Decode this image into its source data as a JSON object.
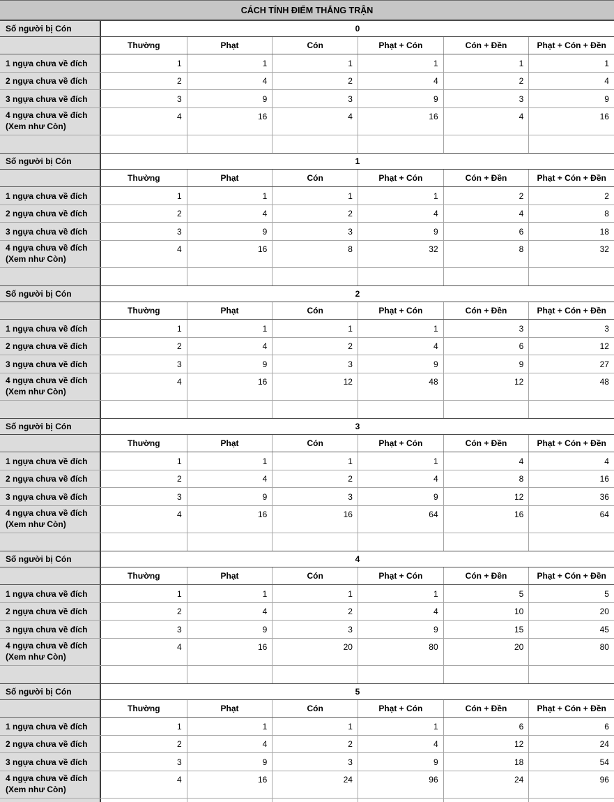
{
  "title": "CÁCH TÍNH ĐIỂM THẮNG TRẬN",
  "labels": {
    "group": "Số người bị Cón"
  },
  "columns": [
    "Thường",
    "Phạt",
    "Cón",
    "Phạt + Cón",
    "Cón + Đền",
    "Phạt + Cón + Đền"
  ],
  "row_labels": [
    "1 ngựa chưa về đích",
    "2 ngựa chưa về đích",
    "3 ngựa chưa về đích",
    "4 ngựa chưa về đích\n(Xem như Còn)"
  ],
  "sections": [
    {
      "count": "0",
      "rows": [
        [
          1,
          1,
          1,
          1,
          1,
          1
        ],
        [
          2,
          4,
          2,
          4,
          2,
          4
        ],
        [
          3,
          9,
          3,
          9,
          3,
          9
        ],
        [
          4,
          16,
          4,
          16,
          4,
          16
        ]
      ]
    },
    {
      "count": "1",
      "rows": [
        [
          1,
          1,
          1,
          1,
          2,
          2
        ],
        [
          2,
          4,
          2,
          4,
          4,
          8
        ],
        [
          3,
          9,
          3,
          9,
          6,
          18
        ],
        [
          4,
          16,
          8,
          32,
          8,
          32
        ]
      ]
    },
    {
      "count": "2",
      "rows": [
        [
          1,
          1,
          1,
          1,
          3,
          3
        ],
        [
          2,
          4,
          2,
          4,
          6,
          12
        ],
        [
          3,
          9,
          3,
          9,
          9,
          27
        ],
        [
          4,
          16,
          12,
          48,
          12,
          48
        ]
      ]
    },
    {
      "count": "3",
      "rows": [
        [
          1,
          1,
          1,
          1,
          4,
          4
        ],
        [
          2,
          4,
          2,
          4,
          8,
          16
        ],
        [
          3,
          9,
          3,
          9,
          12,
          36
        ],
        [
          4,
          16,
          16,
          64,
          16,
          64
        ]
      ]
    },
    {
      "count": "4",
      "rows": [
        [
          1,
          1,
          1,
          1,
          5,
          5
        ],
        [
          2,
          4,
          2,
          4,
          10,
          20
        ],
        [
          3,
          9,
          3,
          9,
          15,
          45
        ],
        [
          4,
          16,
          20,
          80,
          20,
          80
        ]
      ]
    },
    {
      "count": "5",
      "rows": [
        [
          1,
          1,
          1,
          1,
          6,
          6
        ],
        [
          2,
          4,
          2,
          4,
          12,
          24
        ],
        [
          3,
          9,
          3,
          9,
          18,
          54
        ],
        [
          4,
          16,
          24,
          96,
          24,
          96
        ]
      ]
    }
  ],
  "colors": {
    "title_gray": "#c6c6c6",
    "label_gray": "#dcdcdc",
    "border_dark": "#4a4a4a",
    "border_light": "#a6a6a6"
  }
}
